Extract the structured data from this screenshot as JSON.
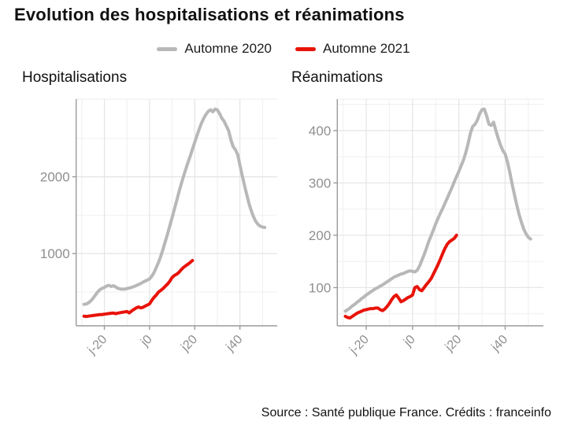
{
  "header": {
    "title": "Evolution des hospitalisations et réanimations"
  },
  "legend": {
    "items": [
      {
        "label": "Automne 2020",
        "color": "#b8b8b8"
      },
      {
        "label": "Automne 2021",
        "color": "#e81309"
      }
    ]
  },
  "footer": {
    "source": "Source : Santé publique France. Crédits : franceinfo"
  },
  "colors": {
    "series_2020": "#b8b8b8",
    "series_2021": "#e81309",
    "grid_major": "#e4e4e4",
    "grid_minor": "#f1f1f1",
    "axis_line": "#9b9b9b",
    "tick_text": "#8f8f8f",
    "text": "#111111"
  },
  "chart_data": [
    {
      "type": "line",
      "title": "Hospitalisations",
      "xlabel": "",
      "ylabel": "",
      "xlim": [
        -32.5,
        56.5
      ],
      "ylim": [
        60,
        3010
      ],
      "x_ticks": [
        -20,
        0,
        20,
        40
      ],
      "x_tick_labels": [
        "j-20",
        "j0",
        "j20",
        "j40"
      ],
      "x_minor_ticks": [
        -30,
        -10,
        10,
        30,
        50
      ],
      "y_ticks": [
        1000,
        2000
      ],
      "y_tick_labels": [
        "1000",
        "2000"
      ],
      "y_minor_ticks": [
        500,
        1500,
        2500
      ],
      "grid": true,
      "legend_position": "top",
      "series": [
        {
          "name": "Automne 2020",
          "color": "#b8b8b8",
          "x_start": -29,
          "x_step": 1,
          "values": [
            340,
            345,
            360,
            385,
            420,
            460,
            500,
            530,
            548,
            560,
            578,
            586,
            572,
            582,
            566,
            548,
            540,
            536,
            538,
            544,
            552,
            560,
            570,
            582,
            596,
            610,
            626,
            642,
            656,
            670,
            705,
            755,
            820,
            890,
            970,
            1060,
            1160,
            1260,
            1365,
            1470,
            1580,
            1690,
            1800,
            1905,
            2005,
            2095,
            2185,
            2270,
            2360,
            2450,
            2540,
            2620,
            2700,
            2762,
            2812,
            2852,
            2872,
            2846,
            2880,
            2870,
            2820,
            2762,
            2722,
            2660,
            2600,
            2480,
            2392,
            2352,
            2290,
            2150,
            2020,
            1890,
            1770,
            1655,
            1560,
            1480,
            1420,
            1380,
            1356,
            1346,
            1340
          ]
        },
        {
          "name": "Automne 2021",
          "color": "#e81309",
          "x_start": -29,
          "x_step": 1,
          "values": [
            185,
            182,
            186,
            190,
            194,
            198,
            202,
            205,
            208,
            212,
            216,
            220,
            224,
            227,
            218,
            226,
            231,
            236,
            241,
            246,
            228,
            252,
            272,
            292,
            306,
            295,
            300,
            316,
            330,
            346,
            392,
            432,
            462,
            500,
            522,
            546,
            576,
            606,
            642,
            690,
            716,
            732,
            756,
            790,
            820,
            842,
            862,
            886,
            910
          ]
        }
      ]
    },
    {
      "type": "line",
      "title": "Réanimations",
      "xlabel": "",
      "ylabel": "",
      "xlim": [
        -32.5,
        56.5
      ],
      "ylim": [
        27,
        460
      ],
      "x_ticks": [
        -20,
        0,
        20,
        40
      ],
      "x_tick_labels": [
        "j-20",
        "j0",
        "j20",
        "j40"
      ],
      "x_minor_ticks": [
        -30,
        -10,
        10,
        30,
        50
      ],
      "y_ticks": [
        100,
        200,
        300,
        400
      ],
      "y_tick_labels": [
        "100",
        "200",
        "300",
        "400"
      ],
      "y_minor_ticks": [
        50,
        150,
        250,
        350,
        450
      ],
      "grid": true,
      "legend_position": "top",
      "series": [
        {
          "name": "Automne 2020",
          "color": "#b8b8b8",
          "x_start": -29,
          "x_step": 1,
          "values": [
            55,
            58,
            61,
            65,
            68,
            72,
            75,
            79,
            82,
            86,
            89,
            92,
            95,
            98,
            100,
            103,
            105,
            108,
            111,
            114,
            117,
            120,
            122,
            124,
            126,
            127,
            129,
            131,
            132,
            131,
            130,
            133,
            141,
            152,
            163,
            175,
            188,
            199,
            210,
            222,
            232,
            242,
            251,
            261,
            271,
            281,
            291,
            302,
            312,
            322,
            333,
            344,
            358,
            375,
            395,
            408,
            412,
            420,
            432,
            440,
            441,
            428,
            412,
            410,
            416,
            400,
            385,
            372,
            362,
            355,
            340,
            320,
            298,
            278,
            258,
            240,
            225,
            212,
            203,
            196,
            193
          ]
        },
        {
          "name": "Automne 2021",
          "color": "#e81309",
          "x_start": -29,
          "x_step": 1,
          "values": [
            45,
            43,
            42,
            45,
            48,
            51,
            53,
            55,
            57,
            58,
            59,
            60,
            60,
            61,
            61,
            58,
            56,
            59,
            64,
            70,
            77,
            83,
            86,
            80,
            73,
            75,
            78,
            81,
            83,
            86,
            100,
            102,
            96,
            94,
            100,
            106,
            111,
            117,
            126,
            135,
            144,
            154,
            165,
            175,
            183,
            188,
            191,
            194,
            200
          ]
        }
      ]
    }
  ]
}
